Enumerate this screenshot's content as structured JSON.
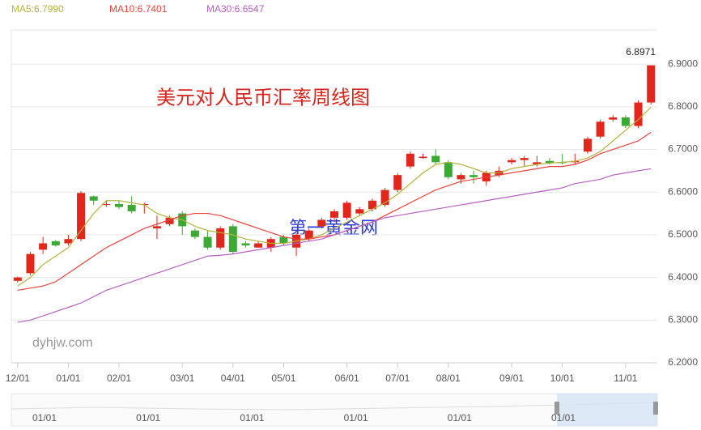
{
  "chart_data": {
    "type": "candlestick",
    "title": "美元对人民币汇率周线图",
    "watermarks": [
      "第一黄金网",
      "dyhjw.com"
    ],
    "categories": [
      "12/01",
      null,
      null,
      null,
      "01/01",
      null,
      null,
      null,
      "02/01",
      null,
      null,
      null,
      null,
      "03/01",
      null,
      null,
      null,
      "04/01",
      null,
      null,
      null,
      "05/01",
      null,
      null,
      null,
      null,
      "06/01",
      null,
      null,
      null,
      "07/01",
      null,
      null,
      null,
      "08/01",
      null,
      null,
      null,
      null,
      "09/01",
      null,
      null,
      null,
      "10/01",
      null,
      null,
      null,
      null,
      "11/01",
      null,
      null
    ],
    "open": [
      6.392,
      6.41,
      6.465,
      6.485,
      6.48,
      6.49,
      6.59,
      6.57,
      6.572,
      6.57,
      6.57,
      6.515,
      6.525,
      6.55,
      6.51,
      6.495,
      6.47,
      6.52,
      6.48,
      6.47,
      6.47,
      6.495,
      6.47,
      6.49,
      6.52,
      6.54,
      6.54,
      6.55,
      6.56,
      6.57,
      6.605,
      6.66,
      6.68,
      6.685,
      6.67,
      6.63,
      6.64,
      6.625,
      6.64,
      6.67,
      6.675,
      6.665,
      6.673,
      6.67,
      6.67,
      6.695,
      6.73,
      6.77,
      6.775,
      6.755,
      6.81
    ],
    "high": [
      6.402,
      6.46,
      6.495,
      6.488,
      6.5,
      6.602,
      6.592,
      6.58,
      6.58,
      6.59,
      6.575,
      6.545,
      6.545,
      6.555,
      6.515,
      6.51,
      6.52,
      6.525,
      6.485,
      6.485,
      6.495,
      6.5,
      6.505,
      6.515,
      6.54,
      6.56,
      6.58,
      6.565,
      6.585,
      6.61,
      6.645,
      6.695,
      6.69,
      6.7,
      6.675,
      6.645,
      6.65,
      6.65,
      6.66,
      6.68,
      6.685,
      6.685,
      6.68,
      6.69,
      6.69,
      6.73,
      6.77,
      6.78,
      6.78,
      6.815,
      6.8971
    ],
    "low": [
      6.388,
      6.405,
      6.455,
      6.472,
      6.475,
      6.485,
      6.57,
      6.565,
      6.56,
      6.55,
      6.55,
      6.49,
      6.52,
      6.5,
      6.49,
      6.465,
      6.465,
      6.455,
      6.47,
      6.47,
      6.46,
      6.475,
      6.45,
      6.485,
      6.515,
      6.53,
      6.535,
      6.545,
      6.555,
      6.565,
      6.6,
      6.655,
      6.678,
      6.665,
      6.63,
      6.62,
      6.62,
      6.615,
      6.635,
      6.665,
      6.66,
      6.66,
      6.665,
      6.665,
      6.665,
      6.69,
      6.725,
      6.765,
      6.75,
      6.75,
      6.805
    ],
    "close": [
      6.4,
      6.455,
      6.48,
      6.475,
      6.49,
      6.598,
      6.58,
      6.572,
      6.565,
      6.555,
      6.572,
      6.52,
      6.54,
      6.52,
      6.495,
      6.47,
      6.515,
      6.46,
      6.475,
      6.48,
      6.49,
      6.48,
      6.5,
      6.51,
      6.535,
      6.555,
      6.575,
      6.56,
      6.58,
      6.605,
      6.64,
      6.69,
      6.683,
      6.67,
      6.635,
      6.64,
      6.635,
      6.645,
      6.65,
      6.675,
      6.68,
      6.67,
      6.668,
      6.668,
      6.673,
      6.725,
      6.765,
      6.775,
      6.755,
      6.81,
      6.8971
    ],
    "up_color": "#e2261c",
    "down_color": "#3aaa35",
    "last_price": 6.8971,
    "series": [
      {
        "name": "MA5:6.7990",
        "color": "#b3b33c",
        "values": [
          6.38,
          6.4,
          6.43,
          6.45,
          6.47,
          6.51,
          6.55,
          6.58,
          6.58,
          6.575,
          6.57,
          6.55,
          6.54,
          6.535,
          6.52,
          6.51,
          6.505,
          6.5,
          6.49,
          6.485,
          6.48,
          6.48,
          6.485,
          6.49,
          6.5,
          6.515,
          6.53,
          6.545,
          6.56,
          6.575,
          6.595,
          6.62,
          6.645,
          6.665,
          6.67,
          6.665,
          6.655,
          6.645,
          6.645,
          6.655,
          6.66,
          6.665,
          6.668,
          6.67,
          6.672,
          6.68,
          6.695,
          6.72,
          6.745,
          6.77,
          6.799
        ]
      },
      {
        "name": "MA10:6.7401",
        "color": "#e8433c",
        "values": [
          6.37,
          6.375,
          6.38,
          6.39,
          6.41,
          6.43,
          6.45,
          6.47,
          6.485,
          6.5,
          6.515,
          6.525,
          6.535,
          6.545,
          6.55,
          6.55,
          6.545,
          6.535,
          6.525,
          6.515,
          6.505,
          6.495,
          6.49,
          6.49,
          6.495,
          6.5,
          6.51,
          6.52,
          6.53,
          6.545,
          6.56,
          6.575,
          6.59,
          6.605,
          6.615,
          6.625,
          6.63,
          6.635,
          6.64,
          6.645,
          6.65,
          6.655,
          6.66,
          6.66,
          6.665,
          6.675,
          6.69,
          6.7,
          6.71,
          6.72,
          6.7401
        ]
      },
      {
        "name": "MA30:6.6547",
        "color": "#b660c2",
        "values": [
          6.295,
          6.3,
          6.31,
          6.32,
          6.33,
          6.34,
          6.355,
          6.37,
          6.38,
          6.39,
          6.4,
          6.41,
          6.42,
          6.43,
          6.44,
          6.45,
          6.452,
          6.455,
          6.46,
          6.465,
          6.47,
          6.475,
          6.48,
          6.485,
          6.49,
          6.5,
          6.51,
          6.52,
          6.53,
          6.54,
          6.545,
          6.55,
          6.555,
          6.56,
          6.565,
          6.57,
          6.575,
          6.58,
          6.585,
          6.59,
          6.595,
          6.6,
          6.605,
          6.61,
          6.62,
          6.625,
          6.63,
          6.64,
          6.645,
          6.65,
          6.6547
        ]
      }
    ],
    "ylim": [
      6.2,
      6.98
    ],
    "yticks": [
      {
        "value": 6.2,
        "label": "6.2000"
      },
      {
        "value": 6.3,
        "label": "6.3000"
      },
      {
        "value": 6.4,
        "label": "6.4000"
      },
      {
        "value": 6.5,
        "label": "6.5000"
      },
      {
        "value": 6.6,
        "label": "6.6000"
      },
      {
        "value": 6.7,
        "label": "6.7000"
      },
      {
        "value": 6.8,
        "label": "6.8000"
      },
      {
        "value": 6.9,
        "label": "6.9000"
      }
    ],
    "grid": true,
    "navigator": {
      "labels": [
        "01/01",
        "01/01",
        "01/01",
        "01/01",
        "01/01",
        "01/01"
      ]
    }
  }
}
